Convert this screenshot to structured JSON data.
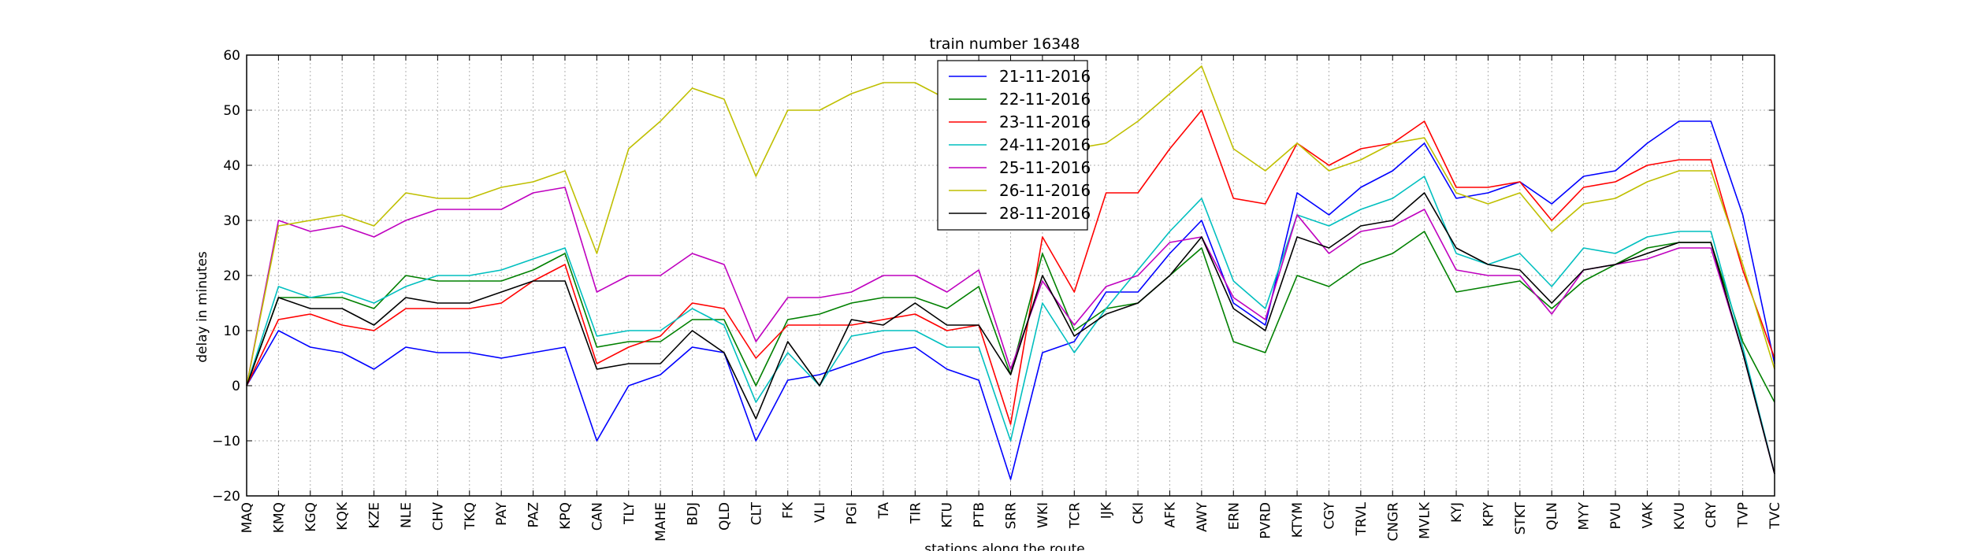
{
  "chart_data": {
    "type": "line",
    "title": "train number 16348",
    "xlabel": "stations along the route",
    "ylabel": "delay in minutes",
    "ylim": [
      -20,
      60
    ],
    "yticks": [
      -20,
      -10,
      0,
      10,
      20,
      30,
      40,
      50,
      60
    ],
    "grid": true,
    "legend_position": "top-center",
    "categories": [
      "MAQ",
      "KMQ",
      "KGQ",
      "KQK",
      "KZE",
      "NLE",
      "CHV",
      "TKQ",
      "PAY",
      "PAZ",
      "KPQ",
      "CAN",
      "TLY",
      "MAHE",
      "BDJ",
      "QLD",
      "CLT",
      "FK",
      "VLI",
      "PGI",
      "TA",
      "TIR",
      "KTU",
      "PTB",
      "SRR",
      "WKI",
      "TCR",
      "IJK",
      "CKI",
      "AFK",
      "AWY",
      "ERN",
      "PVRD",
      "KTYM",
      "CGY",
      "TRVL",
      "CNGR",
      "MVLK",
      "KYJ",
      "KPY",
      "STKT",
      "QLN",
      "MYY",
      "PVU",
      "VAK",
      "KVU",
      "CRY",
      "TVP",
      "TVC"
    ],
    "series": [
      {
        "name": "21-11-2016",
        "color": "#0000ff",
        "values": [
          0,
          10,
          7,
          6,
          3,
          7,
          6,
          6,
          5,
          6,
          7,
          -10,
          0,
          2,
          7,
          6,
          -10,
          1,
          2,
          4,
          6,
          7,
          3,
          1,
          -17,
          6,
          8,
          17,
          17,
          24,
          30,
          15,
          11,
          35,
          31,
          36,
          39,
          44,
          34,
          35,
          37,
          33,
          38,
          39,
          44,
          48,
          48,
          31,
          4
        ]
      },
      {
        "name": "22-11-2016",
        "color": "#008000",
        "values": [
          0,
          16,
          16,
          16,
          14,
          20,
          19,
          19,
          19,
          21,
          24,
          7,
          8,
          8,
          12,
          12,
          0,
          12,
          13,
          15,
          16,
          16,
          14,
          18,
          2,
          24,
          10,
          14,
          15,
          20,
          25,
          8,
          6,
          20,
          18,
          22,
          24,
          28,
          17,
          18,
          19,
          14,
          19,
          22,
          25,
          26,
          26,
          8,
          -3
        ]
      },
      {
        "name": "23-11-2016",
        "color": "#ff0000",
        "values": [
          0,
          12,
          13,
          11,
          10,
          14,
          14,
          14,
          15,
          19,
          22,
          4,
          7,
          9,
          15,
          14,
          5,
          11,
          11,
          11,
          12,
          13,
          10,
          11,
          -7,
          27,
          17,
          35,
          35,
          43,
          50,
          34,
          33,
          44,
          40,
          43,
          44,
          48,
          36,
          36,
          37,
          30,
          36,
          37,
          40,
          41,
          41,
          21,
          5
        ]
      },
      {
        "name": "24-11-2016",
        "color": "#00bfbf",
        "values": [
          0,
          18,
          16,
          17,
          15,
          18,
          20,
          20,
          21,
          23,
          25,
          9,
          10,
          10,
          14,
          11,
          -3,
          6,
          0,
          9,
          10,
          10,
          7,
          7,
          -10,
          15,
          6,
          14,
          21,
          28,
          34,
          19,
          14,
          31,
          29,
          32,
          34,
          38,
          24,
          22,
          24,
          18,
          25,
          24,
          27,
          28,
          28,
          7,
          -16
        ]
      },
      {
        "name": "25-11-2016",
        "color": "#bf00bf",
        "values": [
          0,
          30,
          28,
          29,
          27,
          30,
          32,
          32,
          32,
          35,
          36,
          17,
          20,
          20,
          24,
          22,
          8,
          16,
          16,
          17,
          20,
          20,
          17,
          21,
          3,
          19,
          11,
          18,
          20,
          26,
          27,
          16,
          12,
          31,
          24,
          28,
          29,
          32,
          21,
          20,
          20,
          13,
          21,
          22,
          23,
          25,
          25,
          6,
          -16
        ]
      },
      {
        "name": "26-11-2016",
        "color": "#bfbf00",
        "values": [
          0,
          29,
          30,
          31,
          29,
          35,
          34,
          34,
          36,
          37,
          39,
          24,
          43,
          48,
          54,
          52,
          38,
          50,
          50,
          53,
          55,
          55,
          52,
          53,
          50,
          48,
          43,
          44,
          48,
          53,
          58,
          43,
          39,
          44,
          39,
          41,
          44,
          45,
          35,
          33,
          35,
          28,
          33,
          34,
          37,
          39,
          39,
          22,
          3
        ]
      },
      {
        "name": "28-11-2016",
        "color": "#000000",
        "values": [
          0,
          16,
          14,
          14,
          11,
          16,
          15,
          15,
          17,
          19,
          19,
          3,
          4,
          4,
          10,
          6,
          -6,
          8,
          0,
          12,
          11,
          15,
          11,
          11,
          2,
          20,
          9,
          13,
          15,
          20,
          27,
          14,
          10,
          27,
          25,
          29,
          30,
          35,
          25,
          22,
          21,
          15,
          21,
          22,
          24,
          26,
          26,
          6,
          -16
        ]
      }
    ]
  }
}
